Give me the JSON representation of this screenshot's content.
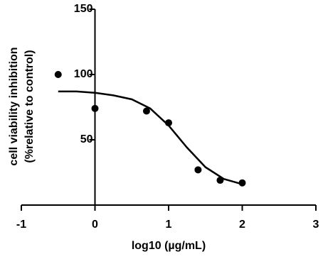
{
  "chart_data": {
    "type": "scatter",
    "xlabel": "log10 (µg/mL)",
    "ylabel": [
      "cell viability inhibition",
      "(%relative to control)"
    ],
    "xlim": [
      -1,
      3
    ],
    "xticks": [
      -1,
      0,
      1,
      2,
      3
    ],
    "ylim": [
      0,
      150
    ],
    "yticks": [
      50,
      100,
      150
    ],
    "series": [
      {
        "mode": "markers",
        "color": "#000000",
        "x": [
          -0.5,
          0,
          0.7,
          1.0,
          1.4,
          1.7,
          2.0
        ],
        "values": [
          100,
          74,
          72,
          63,
          27,
          19,
          17
        ]
      },
      {
        "mode": "line",
        "color": "#000000",
        "x": [
          -0.5,
          -0.25,
          0,
          0.25,
          0.5,
          0.75,
          1.0,
          1.25,
          1.5,
          1.75,
          2.0
        ],
        "values": [
          87,
          87,
          86,
          84,
          81,
          74,
          61,
          44,
          29,
          20,
          16
        ]
      }
    ]
  }
}
